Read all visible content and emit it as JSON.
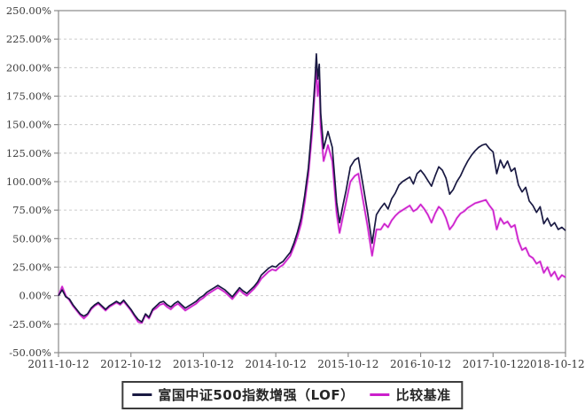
{
  "legend": {
    "fund_label": "富国中证500指数增强（LOF）",
    "benchmark_label": "比较基准"
  },
  "colors": {
    "fund_line": "#191942",
    "benchmark_line": "#cb1fcb",
    "benchmark_halo": "#ee82ee",
    "grid": "#cccccc",
    "axis_frame": "#8a8a8a",
    "tick_text": "#3a3a3a",
    "background": "#ffffff"
  },
  "chart_data": {
    "type": "line",
    "title": "",
    "xlabel": "",
    "ylabel": "",
    "grid": "horizontal-dashed",
    "legend_position": "bottom-center-boxed",
    "y_axis": {
      "min": -50,
      "max": 250,
      "tick_step": 25,
      "tick_labels": [
        "250.00%",
        "225.00%",
        "200.00%",
        "175.00%",
        "150.00%",
        "125.00%",
        "100.00%",
        "75.00%",
        "50.00%",
        "25.00%",
        "0.00%",
        "-25.00%",
        "-50.00%"
      ],
      "tick_values": [
        250,
        225,
        200,
        175,
        150,
        125,
        100,
        75,
        50,
        25,
        0,
        -25,
        -50
      ]
    },
    "x_axis": {
      "tick_labels": [
        "2011-10-12",
        "2012-10-12",
        "2013-10-12",
        "2014-10-12",
        "2015-10-12",
        "2016-10-12",
        "2017-10-12",
        "2018-10-12"
      ],
      "tick_positions_years": [
        0,
        1,
        2,
        3,
        4,
        5,
        6,
        7
      ],
      "range_years": [
        0,
        7
      ]
    },
    "x_years": [
      0,
      0.05,
      0.1,
      0.15,
      0.2,
      0.25,
      0.3,
      0.35,
      0.4,
      0.45,
      0.5,
      0.55,
      0.6,
      0.65,
      0.7,
      0.75,
      0.8,
      0.85,
      0.9,
      0.95,
      1,
      1.05,
      1.1,
      1.15,
      1.2,
      1.25,
      1.3,
      1.35,
      1.4,
      1.45,
      1.5,
      1.55,
      1.6,
      1.65,
      1.7,
      1.75,
      1.8,
      1.85,
      1.9,
      1.95,
      2,
      2.05,
      2.1,
      2.15,
      2.2,
      2.25,
      2.3,
      2.35,
      2.4,
      2.45,
      2.5,
      2.55,
      2.6,
      2.65,
      2.7,
      2.75,
      2.8,
      2.85,
      2.9,
      2.95,
      3,
      3.05,
      3.1,
      3.15,
      3.2,
      3.25,
      3.3,
      3.35,
      3.4,
      3.45,
      3.5,
      3.54,
      3.56,
      3.58,
      3.6,
      3.62,
      3.66,
      3.72,
      3.78,
      3.84,
      3.88,
      3.93,
      3.97,
      4.03,
      4.09,
      4.14,
      4.21,
      4.27,
      4.33,
      4.39,
      4.45,
      4.5,
      4.55,
      4.6,
      4.65,
      4.7,
      4.75,
      4.8,
      4.85,
      4.9,
      4.95,
      5,
      5.05,
      5.1,
      5.15,
      5.2,
      5.25,
      5.3,
      5.35,
      5.4,
      5.45,
      5.5,
      5.55,
      5.6,
      5.65,
      5.7,
      5.75,
      5.8,
      5.85,
      5.9,
      5.95,
      6,
      6.05,
      6.1,
      6.15,
      6.2,
      6.25,
      6.3,
      6.35,
      6.4,
      6.45,
      6.5,
      6.55,
      6.6,
      6.65,
      6.7,
      6.75,
      6.8,
      6.85,
      6.9,
      6.95,
      7
    ],
    "series": [
      {
        "name": "富国中证500指数增强（LOF）",
        "unit": "%",
        "values": [
          0,
          5,
          -1,
          -3,
          -8,
          -12,
          -16,
          -18,
          -16,
          -11,
          -8,
          -6,
          -9,
          -12,
          -9,
          -7,
          -5,
          -7,
          -4,
          -8,
          -12,
          -17,
          -21,
          -23,
          -16,
          -19,
          -12,
          -9,
          -6,
          -5,
          -8,
          -10,
          -7,
          -5,
          -8,
          -11,
          -9,
          -7,
          -5,
          -2,
          0,
          3,
          5,
          7,
          9,
          7,
          5,
          2,
          -1,
          3,
          7,
          4,
          2,
          5,
          8,
          12,
          18,
          21,
          24,
          26,
          25,
          28,
          30,
          34,
          38,
          46,
          56,
          68,
          88,
          112,
          150,
          188,
          212,
          190,
          203,
          160,
          129,
          144,
          130,
          82,
          64,
          80,
          92,
          113,
          119,
          121,
          95,
          72,
          46,
          71,
          77,
          81,
          76,
          85,
          90,
          97,
          100,
          102,
          104,
          98,
          107,
          110,
          106,
          101,
          96,
          105,
          113,
          110,
          103,
          89,
          93,
          100,
          105,
          112,
          118,
          123,
          127,
          130,
          132,
          133,
          129,
          126,
          107,
          119,
          112,
          118,
          109,
          112,
          97,
          91,
          95,
          83,
          79,
          73,
          78,
          63,
          68,
          61,
          64,
          58,
          60,
          57
        ]
      },
      {
        "name": "比较基准",
        "unit": "%",
        "values": [
          0,
          8,
          0,
          -4,
          -9,
          -13,
          -17,
          -20,
          -17,
          -12,
          -9,
          -7,
          -10,
          -13,
          -10,
          -8,
          -6,
          -8,
          -5,
          -9,
          -13,
          -18,
          -23,
          -24,
          -17,
          -20,
          -13,
          -11,
          -8,
          -7,
          -10,
          -12,
          -9,
          -7,
          -10,
          -13,
          -11,
          -9,
          -7,
          -4,
          -2,
          1,
          3,
          5,
          7,
          5,
          3,
          0,
          -3,
          1,
          5,
          2,
          0,
          3,
          6,
          10,
          15,
          18,
          21,
          23,
          22,
          25,
          27,
          31,
          35,
          43,
          52,
          63,
          82,
          106,
          142,
          180,
          198,
          175,
          190,
          148,
          118,
          132,
          118,
          72,
          55,
          70,
          82,
          100,
          105,
          107,
          82,
          60,
          35,
          58,
          58,
          63,
          60,
          66,
          70,
          73,
          75,
          77,
          79,
          74,
          76,
          80,
          76,
          71,
          64,
          72,
          78,
          75,
          68,
          58,
          62,
          68,
          72,
          74,
          77,
          79,
          81,
          82,
          83,
          84,
          79,
          75,
          58,
          68,
          63,
          65,
          60,
          62,
          48,
          40,
          42,
          35,
          33,
          28,
          30,
          20,
          25,
          17,
          21,
          14,
          18,
          16
        ]
      }
    ]
  }
}
